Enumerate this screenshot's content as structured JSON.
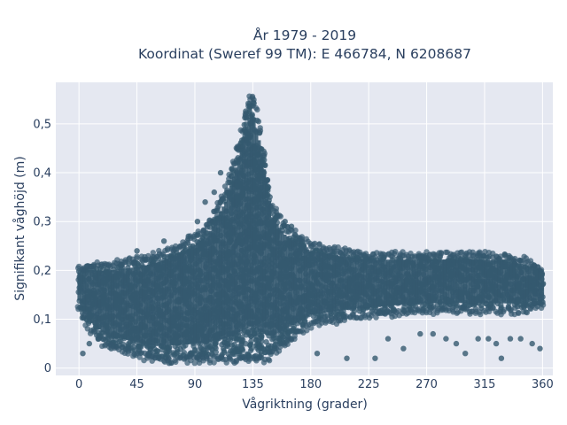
{
  "chart_data": {
    "type": "scatter",
    "title": "År 1979 - 2019",
    "subtitle": "Koordinat (Sweref 99 TM): E 466784, N 6208687",
    "xlabel": "Vågriktning (grader)",
    "ylabel": "Signifikant våghöjd (m)",
    "xlim": [
      -18,
      368
    ],
    "ylim": [
      -0.015,
      0.585
    ],
    "x_ticks": [
      0,
      45,
      90,
      135,
      180,
      225,
      270,
      315,
      360
    ],
    "x_tick_labels": [
      "0",
      "45",
      "90",
      "135",
      "180",
      "225",
      "270",
      "315",
      "360"
    ],
    "y_ticks": [
      0,
      0.1,
      0.2,
      0.3,
      0.4,
      0.5
    ],
    "y_tick_labels": [
      "0",
      "0,1",
      "0,2",
      "0,3",
      "0,4",
      "0,5"
    ],
    "grid": true,
    "colors": {
      "marker": "#34596f",
      "plot_background": "#e5e8f1",
      "gridline": "#ffffff",
      "text": "#2a3f5f"
    },
    "envelope": {
      "direction": [
        0,
        5,
        20,
        45,
        60,
        80,
        100,
        115,
        125,
        130,
        133,
        136,
        140,
        145,
        150,
        160,
        170,
        180,
        200,
        225,
        270,
        315,
        345,
        355,
        360
      ],
      "max_height": [
        0.2,
        0.21,
        0.21,
        0.22,
        0.23,
        0.25,
        0.29,
        0.37,
        0.47,
        0.53,
        0.56,
        0.55,
        0.5,
        0.42,
        0.33,
        0.29,
        0.27,
        0.25,
        0.24,
        0.23,
        0.23,
        0.23,
        0.22,
        0.21,
        0.2
      ],
      "min_height": [
        0.13,
        0.09,
        0.05,
        0.03,
        0.02,
        0.02,
        0.02,
        0.02,
        0.02,
        0.02,
        0.02,
        0.02,
        0.02,
        0.02,
        0.03,
        0.05,
        0.07,
        0.09,
        0.1,
        0.11,
        0.12,
        0.12,
        0.12,
        0.13,
        0.13
      ]
    },
    "outliers": [
      {
        "x": 3,
        "y": 0.03
      },
      {
        "x": 8,
        "y": 0.05
      },
      {
        "x": 15,
        "y": 0.06
      },
      {
        "x": 25,
        "y": 0.04
      },
      {
        "x": 38,
        "y": 0.04
      },
      {
        "x": 45,
        "y": 0.24
      },
      {
        "x": 55,
        "y": 0.03
      },
      {
        "x": 66,
        "y": 0.26
      },
      {
        "x": 70,
        "y": 0.01
      },
      {
        "x": 85,
        "y": 0.27
      },
      {
        "x": 92,
        "y": 0.3
      },
      {
        "x": 98,
        "y": 0.34
      },
      {
        "x": 105,
        "y": 0.36
      },
      {
        "x": 110,
        "y": 0.4
      },
      {
        "x": 160,
        "y": 0.3
      },
      {
        "x": 165,
        "y": 0.29
      },
      {
        "x": 170,
        "y": 0.26
      },
      {
        "x": 185,
        "y": 0.03
      },
      {
        "x": 195,
        "y": 0.23
      },
      {
        "x": 205,
        "y": 0.23
      },
      {
        "x": 208,
        "y": 0.02
      },
      {
        "x": 222,
        "y": 0.23
      },
      {
        "x": 230,
        "y": 0.02
      },
      {
        "x": 240,
        "y": 0.06
      },
      {
        "x": 252,
        "y": 0.04
      },
      {
        "x": 265,
        "y": 0.07
      },
      {
        "x": 275,
        "y": 0.07
      },
      {
        "x": 285,
        "y": 0.06
      },
      {
        "x": 293,
        "y": 0.05
      },
      {
        "x": 300,
        "y": 0.03
      },
      {
        "x": 310,
        "y": 0.06
      },
      {
        "x": 318,
        "y": 0.06
      },
      {
        "x": 324,
        "y": 0.05
      },
      {
        "x": 328,
        "y": 0.02
      },
      {
        "x": 335,
        "y": 0.06
      },
      {
        "x": 343,
        "y": 0.06
      },
      {
        "x": 352,
        "y": 0.05
      },
      {
        "x": 358,
        "y": 0.04
      },
      {
        "x": 331,
        "y": 0.23
      },
      {
        "x": 310,
        "y": 0.23
      }
    ]
  }
}
